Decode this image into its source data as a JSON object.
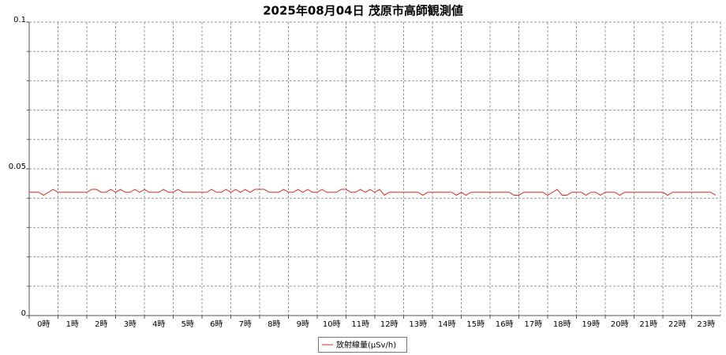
{
  "chart_data": {
    "type": "line",
    "title": "2025年08月04日 茂原市高師観測値",
    "xlim": [
      0,
      1440
    ],
    "xticks": [
      {
        "value": 0,
        "label": "0時"
      },
      {
        "value": 60,
        "label": "1時"
      },
      {
        "value": 120,
        "label": "2時"
      },
      {
        "value": 180,
        "label": "3時"
      },
      {
        "value": 240,
        "label": "4時"
      },
      {
        "value": 300,
        "label": "5時"
      },
      {
        "value": 360,
        "label": "6時"
      },
      {
        "value": 420,
        "label": "7時"
      },
      {
        "value": 480,
        "label": "8時"
      },
      {
        "value": 540,
        "label": "9時"
      },
      {
        "value": 600,
        "label": "10時"
      },
      {
        "value": 660,
        "label": "11時"
      },
      {
        "value": 720,
        "label": "12時"
      },
      {
        "value": 780,
        "label": "13時"
      },
      {
        "value": 840,
        "label": "14時"
      },
      {
        "value": 900,
        "label": "15時"
      },
      {
        "value": 960,
        "label": "16時"
      },
      {
        "value": 1020,
        "label": "17時"
      },
      {
        "value": 1080,
        "label": "18時"
      },
      {
        "value": 1140,
        "label": "19時"
      },
      {
        "value": 1200,
        "label": "20時"
      },
      {
        "value": 1260,
        "label": "21時"
      },
      {
        "value": 1320,
        "label": "22時"
      },
      {
        "value": 1380,
        "label": "23時"
      }
    ],
    "ylim": [
      0,
      0.1
    ],
    "yticks": [
      0,
      0.05,
      0.1
    ],
    "minor_yticks": [
      0.01,
      0.02,
      0.03,
      0.04,
      0.06,
      0.07,
      0.08,
      0.09
    ],
    "grid": true,
    "legend": "bottom",
    "x": [
      0,
      10,
      20,
      30,
      40,
      50,
      60,
      70,
      80,
      90,
      100,
      110,
      120,
      130,
      140,
      150,
      160,
      170,
      180,
      190,
      200,
      210,
      220,
      230,
      240,
      250,
      260,
      270,
      280,
      290,
      300,
      310,
      320,
      330,
      340,
      350,
      360,
      370,
      380,
      390,
      400,
      410,
      420,
      430,
      440,
      450,
      460,
      470,
      480,
      490,
      500,
      510,
      520,
      530,
      540,
      550,
      560,
      570,
      580,
      590,
      600,
      610,
      620,
      630,
      640,
      650,
      660,
      670,
      680,
      690,
      700,
      710,
      720,
      730,
      740,
      750,
      760,
      770,
      780,
      790,
      800,
      810,
      820,
      830,
      840,
      850,
      860,
      870,
      880,
      890,
      900,
      910,
      920,
      930,
      940,
      950,
      960,
      970,
      980,
      990,
      1000,
      1010,
      1020,
      1030,
      1040,
      1050,
      1060,
      1070,
      1080,
      1090,
      1100,
      1110,
      1120,
      1130,
      1140,
      1150,
      1160,
      1170,
      1180,
      1190,
      1200,
      1210,
      1220,
      1230,
      1240,
      1250,
      1260,
      1270,
      1280,
      1290,
      1300,
      1310,
      1320,
      1330,
      1340,
      1350,
      1360,
      1370,
      1380,
      1390,
      1400,
      1410,
      1420,
      1430
    ],
    "series": [
      {
        "name": "放射線量(μSv/h)",
        "color": "#e8281e",
        "values": [
          0.042,
          0.042,
          0.042,
          0.041,
          0.042,
          0.043,
          0.042,
          0.042,
          0.042,
          0.042,
          0.042,
          0.042,
          0.042,
          0.043,
          0.043,
          0.042,
          0.042,
          0.043,
          0.042,
          0.043,
          0.042,
          0.042,
          0.043,
          0.042,
          0.043,
          0.042,
          0.042,
          0.042,
          0.043,
          0.042,
          0.042,
          0.043,
          0.042,
          0.042,
          0.042,
          0.042,
          0.042,
          0.042,
          0.043,
          0.042,
          0.042,
          0.043,
          0.042,
          0.043,
          0.042,
          0.043,
          0.042,
          0.043,
          0.043,
          0.043,
          0.042,
          0.042,
          0.042,
          0.043,
          0.042,
          0.042,
          0.043,
          0.042,
          0.043,
          0.042,
          0.042,
          0.043,
          0.042,
          0.042,
          0.042,
          0.043,
          0.043,
          0.042,
          0.042,
          0.043,
          0.042,
          0.043,
          0.042,
          0.043,
          0.041,
          0.042,
          0.042,
          0.042,
          0.042,
          0.042,
          0.042,
          0.042,
          0.041,
          0.042,
          0.042,
          0.042,
          0.042,
          0.042,
          0.042,
          0.041,
          0.042,
          0.041,
          0.042,
          0.042,
          0.042,
          0.042,
          0.042,
          0.042,
          0.042,
          0.042,
          0.042,
          0.041,
          0.041,
          0.042,
          0.042,
          0.042,
          0.042,
          0.042,
          0.041,
          0.042,
          0.043,
          0.041,
          0.041,
          0.042,
          0.042,
          0.042,
          0.041,
          0.042,
          0.042,
          0.041,
          0.042,
          0.042,
          0.042,
          0.041,
          0.042,
          0.042,
          0.042,
          0.042,
          0.042,
          0.042,
          0.042,
          0.042,
          0.042,
          0.041,
          0.042,
          0.042,
          0.042,
          0.042,
          0.042,
          0.042,
          0.042,
          0.042,
          0.042,
          0.041
        ]
      }
    ]
  }
}
